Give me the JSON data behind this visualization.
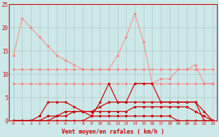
{
  "x": [
    0,
    1,
    2,
    3,
    4,
    5,
    6,
    7,
    8,
    9,
    10,
    11,
    12,
    13,
    14,
    15,
    16,
    17,
    18,
    19,
    20,
    21,
    22,
    23
  ],
  "line1": [
    14,
    22,
    20,
    18,
    16,
    14,
    13,
    12,
    11,
    11,
    11,
    11,
    14,
    18,
    23,
    17,
    8,
    9,
    9,
    11,
    11,
    12,
    8,
    8
  ],
  "line2": [
    11,
    11,
    11,
    11,
    11,
    11,
    11,
    11,
    11,
    11,
    11,
    11,
    11,
    11,
    11,
    11,
    11,
    11,
    11,
    11,
    11,
    11,
    11,
    11
  ],
  "line3": [
    8,
    8,
    8,
    8,
    8,
    8,
    8,
    8,
    8,
    8,
    8,
    8,
    8,
    8,
    8,
    8,
    8,
    8,
    8,
    8,
    8,
    8,
    8,
    8
  ],
  "line4": [
    0,
    0,
    0,
    1,
    4,
    4,
    4,
    3,
    2,
    1,
    4,
    8,
    4,
    4,
    8,
    8,
    8,
    4,
    4,
    4,
    4,
    4,
    0,
    0
  ],
  "line5": [
    0,
    0,
    0,
    0,
    1,
    1,
    2,
    2,
    2,
    2,
    3,
    4,
    4,
    4,
    4,
    4,
    4,
    4,
    4,
    4,
    4,
    4,
    2,
    0
  ],
  "line6": [
    0,
    0,
    0,
    0,
    0,
    1,
    1,
    2,
    2,
    2,
    2,
    2,
    2,
    2,
    3,
    3,
    3,
    3,
    3,
    3,
    3,
    2,
    1,
    0
  ],
  "line7": [
    0,
    0,
    0,
    0,
    0,
    0,
    0,
    0,
    0,
    1,
    1,
    1,
    1,
    1,
    1,
    1,
    1,
    1,
    1,
    0,
    0,
    0,
    0,
    0
  ],
  "bg_color": "#cce8e8",
  "grid_color": "#aaaaaa",
  "line1_color": "#ff8080",
  "line2_color": "#ff8080",
  "line3_color": "#ff8080",
  "line4_color": "#cc0000",
  "line5_color": "#cc0000",
  "line6_color": "#cc0000",
  "line7_color": "#cc0000",
  "xlabel": "Vent moyen/en rafales ( km/h )",
  "ylim": [
    0,
    25
  ],
  "xlim": [
    -0.5,
    23.5
  ],
  "yticks": [
    0,
    5,
    10,
    15,
    20,
    25
  ]
}
